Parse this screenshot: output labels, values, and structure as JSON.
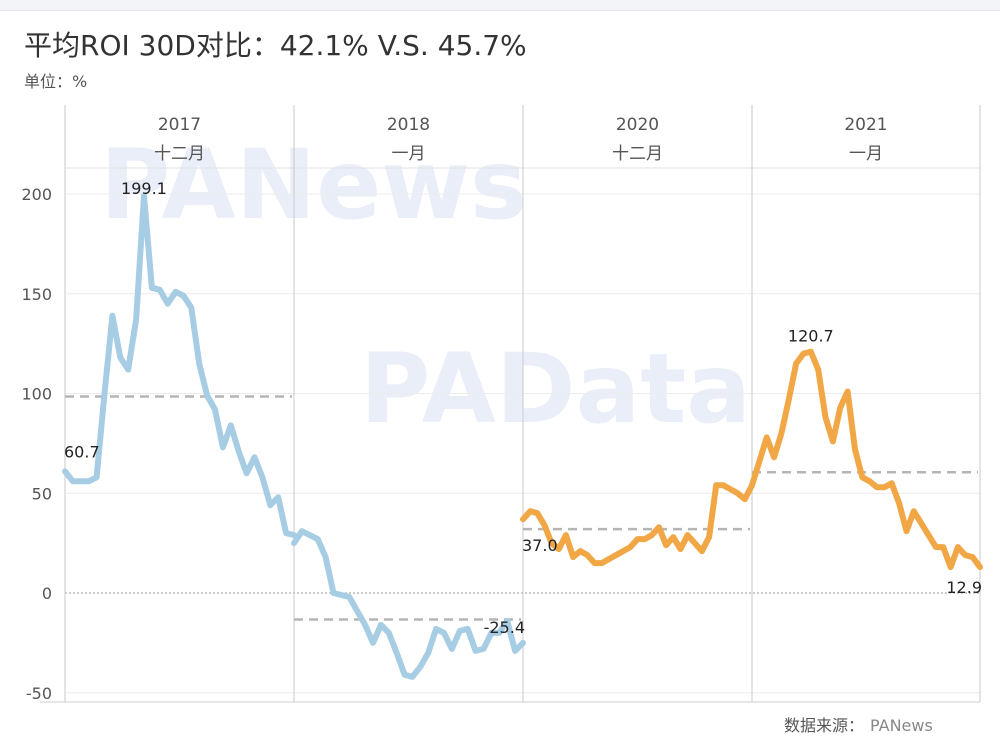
{
  "header": {
    "title": "平均ROI 30D对比：42.1% V.S. 45.7%",
    "unit": "单位：%"
  },
  "footer": {
    "source": "数据来源：",
    "wechat": "PANews"
  },
  "watermarks": [
    "PANews",
    "PAData"
  ],
  "colors": {
    "blue": "#a7cde4",
    "orange": "#f1a745",
    "dash": "#b5b5b5",
    "grid": "#ececec"
  },
  "chart_data": {
    "type": "line",
    "title": "平均ROI 30D对比：42.1% V.S. 45.7%",
    "ylabel": "%",
    "ylim": [
      -55,
      225
    ],
    "yticks": [
      200,
      150,
      100,
      50,
      0,
      -50
    ],
    "panels": [
      {
        "year": "2017",
        "month": "十二月",
        "color": "#a7cde4",
        "mean": 98.5,
        "values": [
          61,
          56,
          56,
          56,
          58,
          100,
          139,
          118,
          112,
          137,
          199,
          153,
          152,
          145,
          151,
          149,
          143,
          115,
          99,
          92,
          73,
          84,
          71,
          60,
          68,
          58,
          44,
          48,
          30,
          29
        ],
        "labels": [
          {
            "index": 0,
            "text": "60.7"
          },
          {
            "index": 10,
            "text": "199.1"
          }
        ]
      },
      {
        "year": "2018",
        "month": "一月",
        "color": "#a7cde4",
        "mean": -13.3,
        "values": [
          25,
          31,
          29,
          27,
          18,
          0,
          -1,
          -2,
          -9,
          -16,
          -25,
          -16,
          -20,
          -30,
          -41,
          -42,
          -37,
          -30,
          -18,
          -20,
          -28,
          -19,
          -18,
          -29,
          -28,
          -20,
          -20,
          -14,
          -29,
          -25
        ],
        "labels": [
          {
            "index": 29,
            "text": "-25.4"
          }
        ]
      },
      {
        "year": "2020",
        "month": "十二月",
        "color": "#f1a745",
        "mean": 32,
        "values": [
          37,
          41,
          40,
          34,
          25,
          22,
          29,
          18,
          21,
          19,
          15,
          15,
          17,
          19,
          21,
          23,
          27,
          27,
          29,
          33,
          24,
          28,
          22,
          29,
          25,
          21,
          28,
          54,
          54,
          52,
          50,
          47,
          54
        ],
        "labels": [
          {
            "index": 0,
            "text": "37.0"
          }
        ]
      },
      {
        "year": "2021",
        "month": "一月",
        "color": "#f1a745",
        "mean": 60.5,
        "values": [
          54,
          66,
          78,
          68,
          80,
          97,
          115,
          120,
          121,
          112,
          88,
          76,
          93,
          101,
          72,
          58,
          56,
          53,
          53,
          55,
          45,
          31,
          41,
          35,
          29,
          23,
          23,
          13,
          23,
          19,
          18,
          13
        ],
        "labels": [
          {
            "index": 8,
            "text": "120.7"
          },
          {
            "index": 31,
            "text": "12.9"
          }
        ]
      }
    ]
  }
}
